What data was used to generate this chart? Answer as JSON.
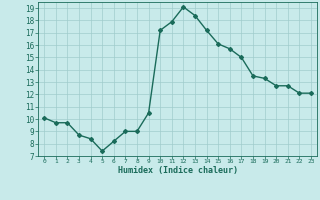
{
  "x": [
    0,
    1,
    2,
    3,
    4,
    5,
    6,
    7,
    8,
    9,
    10,
    11,
    12,
    13,
    14,
    15,
    16,
    17,
    18,
    19,
    20,
    21,
    22,
    23
  ],
  "y": [
    10.1,
    9.7,
    9.7,
    8.7,
    8.4,
    7.4,
    8.2,
    9.0,
    9.0,
    10.5,
    17.2,
    17.9,
    19.1,
    18.4,
    17.2,
    16.1,
    15.7,
    15.0,
    13.5,
    13.3,
    12.7,
    12.7,
    12.1,
    12.1
  ],
  "xlabel": "Humidex (Indice chaleur)",
  "xlim": [
    -0.5,
    23.5
  ],
  "ylim": [
    7,
    19.5
  ],
  "yticks": [
    7,
    8,
    9,
    10,
    11,
    12,
    13,
    14,
    15,
    16,
    17,
    18,
    19
  ],
  "xticks": [
    0,
    1,
    2,
    3,
    4,
    5,
    6,
    7,
    8,
    9,
    10,
    11,
    12,
    13,
    14,
    15,
    16,
    17,
    18,
    19,
    20,
    21,
    22,
    23
  ],
  "line_color": "#1a6b5a",
  "bg_color": "#c8eaea",
  "grid_color": "#a0cccc",
  "marker": "D",
  "marker_size": 2.0,
  "line_width": 1.0
}
